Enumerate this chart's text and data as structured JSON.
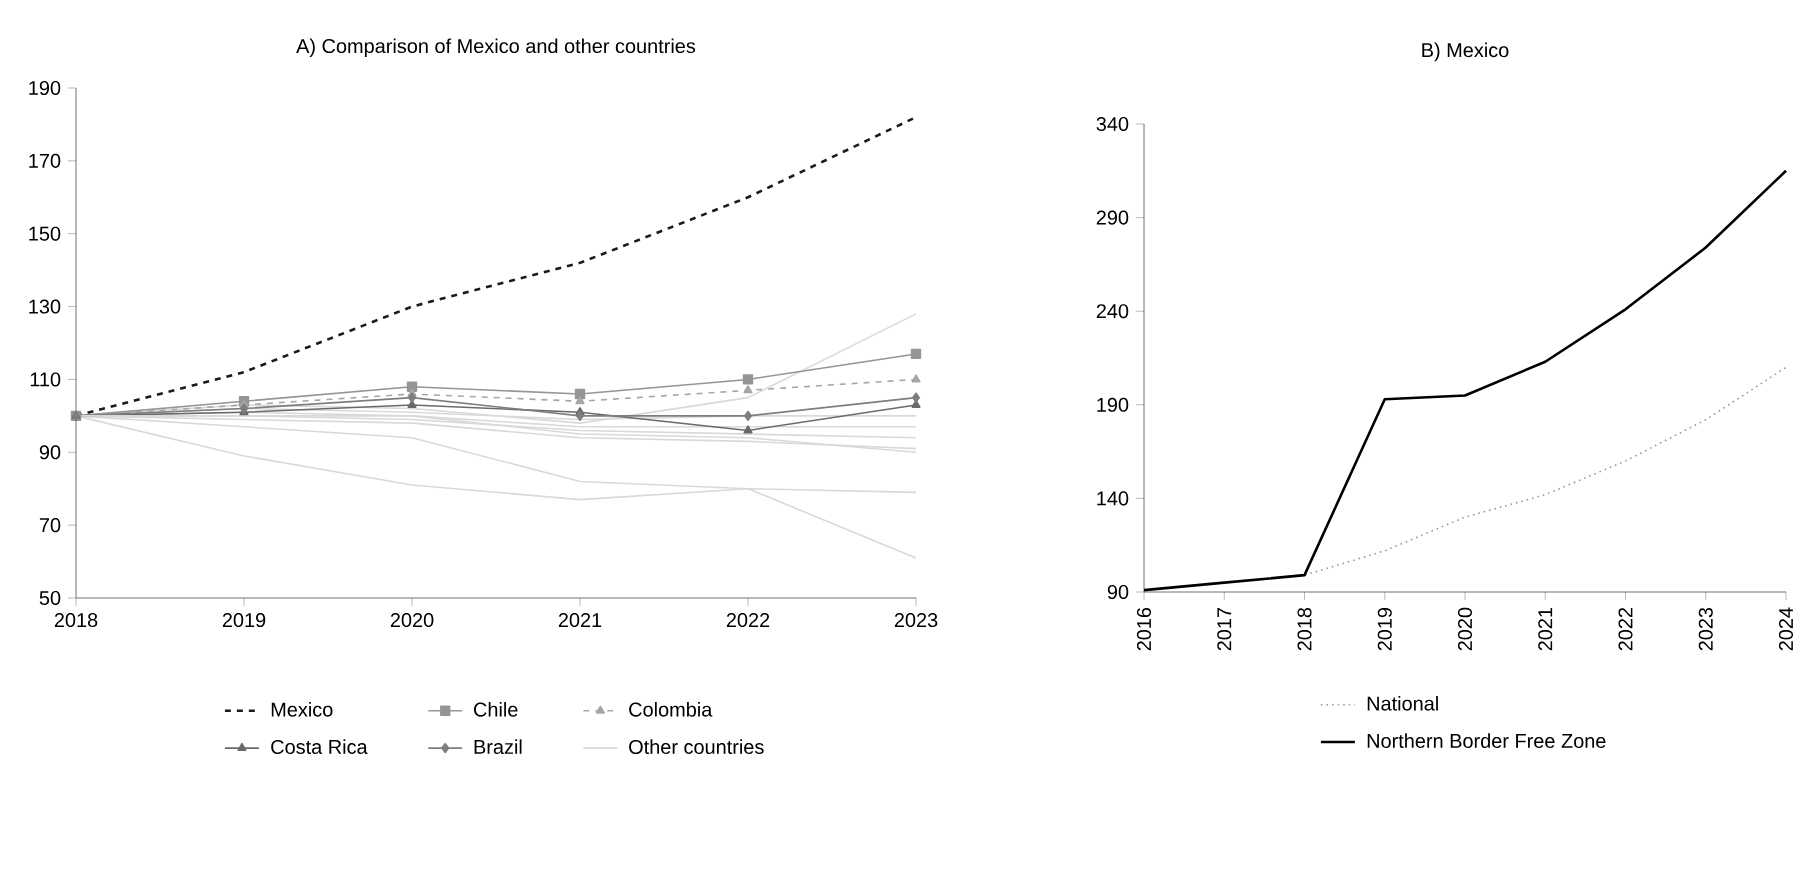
{
  "chart_data": [
    {
      "type": "line",
      "title": "A) Comparison of Mexico and other countries",
      "x": [
        2018,
        2019,
        2020,
        2021,
        2022,
        2023
      ],
      "xlim": [
        2018,
        2023
      ],
      "xticks": [
        2018,
        2019,
        2020,
        2021,
        2022,
        2023
      ],
      "ylim": [
        50,
        190
      ],
      "yticks": [
        50,
        70,
        90,
        110,
        130,
        150,
        170,
        190
      ],
      "legend": "bottom",
      "series": [
        {
          "color": "#d9d9d9",
          "marker": "none",
          "line_style": "solid",
          "values": [
            100,
            103,
            102,
            98,
            105,
            128
          ]
        },
        {
          "color": "#d9d9d9",
          "marker": "none",
          "line_style": "solid",
          "values": [
            100,
            89,
            81,
            77,
            80,
            79
          ]
        },
        {
          "color": "#d9d9d9",
          "marker": "none",
          "line_style": "solid",
          "values": [
            100,
            97,
            94,
            82,
            80,
            61
          ]
        },
        {
          "color": "#d9d9d9",
          "marker": "none",
          "line_style": "solid",
          "values": [
            100,
            99,
            98,
            94,
            93,
            91
          ]
        },
        {
          "color": "#d9d9d9",
          "marker": "none",
          "line_style": "solid",
          "values": [
            100,
            100,
            99,
            96,
            95,
            94
          ]
        },
        {
          "color": "#d9d9d9",
          "marker": "none",
          "line_style": "solid",
          "values": [
            100,
            101,
            100,
            97,
            97,
            97
          ]
        },
        {
          "color": "#d9d9d9",
          "marker": "none",
          "line_style": "solid",
          "values": [
            100,
            102,
            101,
            99,
            100,
            100
          ]
        },
        {
          "name": "Mexico",
          "color": "#1a1a1a",
          "marker": "none",
          "line_style": "dashed",
          "values": [
            100,
            112,
            130,
            142,
            160,
            182
          ]
        },
        {
          "name": "Chile",
          "color": "#959595",
          "marker": "square",
          "line_style": "solid",
          "values": [
            100,
            104,
            108,
            106,
            110,
            117
          ]
        },
        {
          "name": "Colombia",
          "color": "#a6a6a6",
          "marker": "triangle",
          "line_style": "dashed",
          "values": [
            100,
            103,
            106,
            104,
            107,
            110
          ]
        },
        {
          "name": "Costa Rica",
          "color": "#6a6a6a",
          "marker": "triangle",
          "line_style": "solid",
          "values": [
            100,
            101,
            103,
            101,
            96,
            103
          ]
        },
        {
          "name": "Brazil",
          "color": "#7e7e7e",
          "marker": "diamond",
          "line_style": "solid",
          "values": [
            100,
            102,
            105,
            100,
            100,
            105
          ]
        },
        {
          "name": "Other countries",
          "color": "#d9d9d9",
          "marker": "none",
          "line_style": "solid",
          "values": [
            100,
            100,
            100,
            95,
            94,
            90
          ]
        }
      ]
    },
    {
      "type": "line",
      "title": "B) Mexico",
      "x": [
        2016,
        2017,
        2018,
        2019,
        2020,
        2021,
        2022,
        2023,
        2024
      ],
      "xlim": [
        2016,
        2024
      ],
      "xticks": [
        2016,
        2017,
        2018,
        2019,
        2020,
        2021,
        2022,
        2023,
        2024
      ],
      "ylim": [
        90,
        340
      ],
      "yticks": [
        90,
        140,
        190,
        240,
        290,
        340
      ],
      "legend": "bottom",
      "series": [
        {
          "name": "National",
          "color": "#999999",
          "marker": "none",
          "line_style": "dotted",
          "values": [
            91,
            95,
            99,
            112,
            130,
            142,
            160,
            182,
            210
          ]
        },
        {
          "name": "Northern Border Free Zone",
          "color": "#000000",
          "marker": "none",
          "line_style": "solid",
          "values": [
            91,
            95,
            99,
            193,
            195,
            213,
            241,
            274,
            315
          ]
        }
      ]
    }
  ]
}
